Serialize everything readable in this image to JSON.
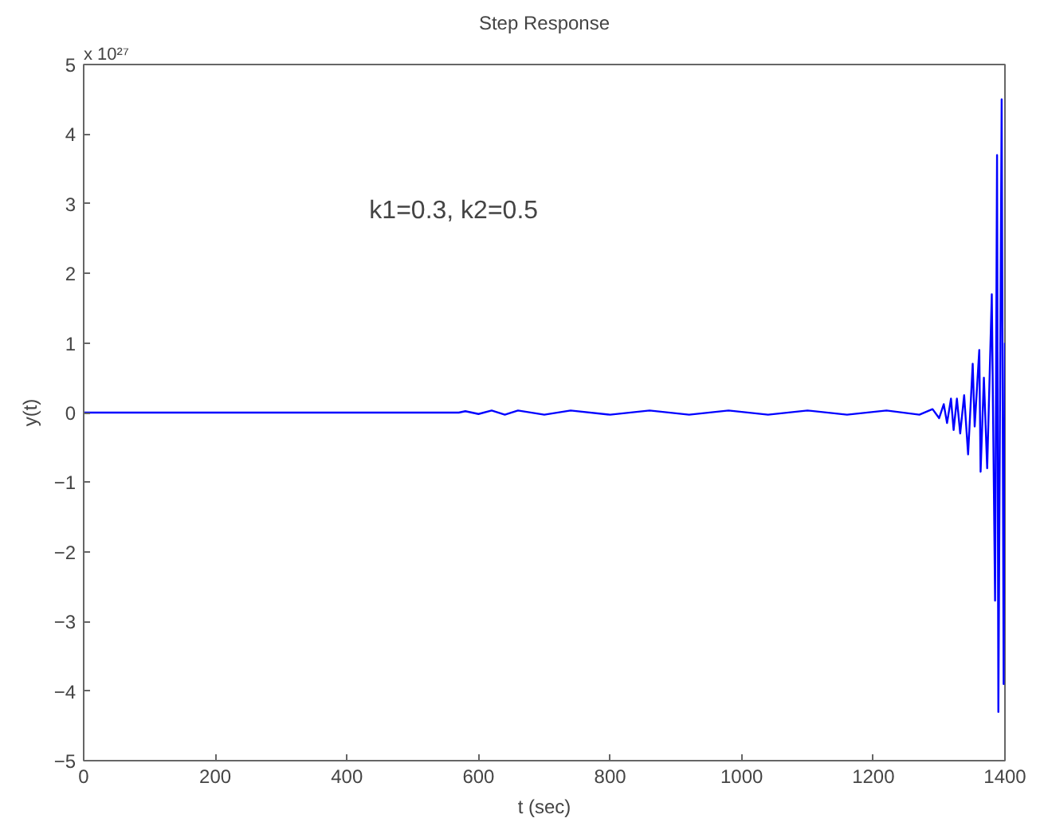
{
  "chart_data": {
    "type": "line",
    "title": "Step Response",
    "xlabel": "t (sec)",
    "ylabel": "y(t)",
    "annotations": [
      "x 10²⁷",
      "k1=0.3, k2=0.5"
    ],
    "xlim": [
      0,
      1400
    ],
    "xticks": [
      0,
      200,
      400,
      600,
      800,
      1000,
      1200,
      1400
    ],
    "ylim": [
      -5,
      5
    ],
    "yticks": [
      -5,
      -4,
      -3,
      -2,
      -1,
      0,
      1,
      2,
      3,
      4,
      5
    ],
    "line_style": "solid",
    "series": [
      {
        "color": "#0000ff",
        "x": [
          0,
          570,
          580,
          600,
          620,
          640,
          660,
          700,
          740,
          800,
          860,
          920,
          980,
          1040,
          1100,
          1160,
          1220,
          1270,
          1290,
          1300,
          1307,
          1312,
          1318,
          1322,
          1327,
          1332,
          1338,
          1344,
          1351,
          1354,
          1361,
          1363,
          1368,
          1373,
          1380,
          1385,
          1388,
          1390,
          1395,
          1398,
          1400
        ],
        "values": [
          0,
          0,
          0.02,
          -0.02,
          0.03,
          -0.03,
          0.03,
          -0.03,
          0.03,
          -0.03,
          0.03,
          -0.03,
          0.03,
          -0.03,
          0.03,
          -0.03,
          0.03,
          -0.03,
          0.05,
          -0.08,
          0.12,
          -0.15,
          0.2,
          -0.25,
          0.2,
          -0.3,
          0.25,
          -0.6,
          0.7,
          -0.2,
          0.9,
          -0.85,
          0.5,
          -0.8,
          1.7,
          -2.7,
          3.7,
          -4.3,
          4.5,
          -3.9,
          1.0
        ]
      }
    ]
  }
}
